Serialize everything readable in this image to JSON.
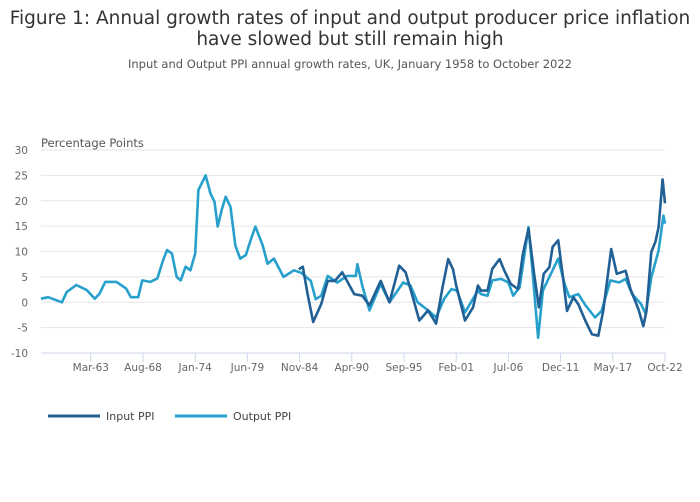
{
  "chart_data": {
    "type": "line",
    "title": "Figure 1: Annual growth rates of input and output producer price inflation",
    "title_line2": "have slowed but still remain high",
    "subtitle": "Input and Output PPI annual growth rates, UK, January 1958 to October 2022",
    "ylabel": "Percentage Points",
    "xlabel": "",
    "ylim": [
      -10,
      30
    ],
    "xlim": [
      "1958-01",
      "2022-10"
    ],
    "yticks": [
      "30",
      "25",
      "20",
      "15",
      "10",
      "5",
      "0",
      "-5",
      "-10"
    ],
    "xticks": [
      {
        "date": "1963-03",
        "label": "Mar-63"
      },
      {
        "date": "1968-08",
        "label": "Aug-68"
      },
      {
        "date": "1974-01",
        "label": "Jan-74"
      },
      {
        "date": "1979-06",
        "label": "Jun-79"
      },
      {
        "date": "1984-11",
        "label": "Nov-84"
      },
      {
        "date": "1990-04",
        "label": "Apr-90"
      },
      {
        "date": "1995-09",
        "label": "Sep-95"
      },
      {
        "date": "2001-02",
        "label": "Feb-01"
      },
      {
        "date": "2006-07",
        "label": "Jul-06"
      },
      {
        "date": "2011-12",
        "label": "Dec-11"
      },
      {
        "date": "2017-05",
        "label": "May-17"
      },
      {
        "date": "2022-10",
        "label": "Oct-22"
      }
    ],
    "grid": true,
    "legend_position": "bottom-left",
    "series": [
      {
        "name": "Input PPI",
        "color": "#206095",
        "points": [
          [
            "1984-10",
            6.5
          ],
          [
            "1985-03",
            7
          ],
          [
            "1985-09",
            1.6
          ],
          [
            "1986-04",
            -3.9
          ],
          [
            "1987-02",
            -0.3
          ],
          [
            "1987-10",
            4.2
          ],
          [
            "1988-07",
            4.2
          ],
          [
            "1989-04",
            5.9
          ],
          [
            "1989-10",
            4.2
          ],
          [
            "1990-07",
            1.6
          ],
          [
            "1991-05",
            1.3
          ],
          [
            "1992-02",
            -0.6
          ],
          [
            "1993-04",
            4.2
          ],
          [
            "1994-03",
            0
          ],
          [
            "1995-03",
            7.2
          ],
          [
            "1995-11",
            5.9
          ],
          [
            "1996-08",
            1
          ],
          [
            "1997-04",
            -3.6
          ],
          [
            "1998-03",
            -1.6
          ],
          [
            "1999-01",
            -4.2
          ],
          [
            "1999-09",
            2.9
          ],
          [
            "2000-04",
            8.5
          ],
          [
            "2000-10",
            6.5
          ],
          [
            "2001-02",
            3.3
          ],
          [
            "2002-01",
            -3.6
          ],
          [
            "2002-11",
            -1
          ],
          [
            "2003-05",
            3.3
          ],
          [
            "2003-09",
            2.3
          ],
          [
            "2004-05",
            2.3
          ],
          [
            "2004-11",
            6.6
          ],
          [
            "2005-08",
            8.5
          ],
          [
            "2006-02",
            6.2
          ],
          [
            "2006-10",
            3.6
          ],
          [
            "2007-07",
            2.6
          ],
          [
            "2008-01",
            9.5
          ],
          [
            "2008-08",
            14.5
          ],
          [
            "2009-03",
            5.6
          ],
          [
            "2009-09",
            -1
          ],
          [
            "2010-03",
            5.6
          ],
          [
            "2010-10",
            6.9
          ],
          [
            "2011-02",
            10.9
          ],
          [
            "2011-09",
            12.2
          ],
          [
            "2012-03",
            4.9
          ],
          [
            "2012-08",
            -1.7
          ],
          [
            "2013-04",
            1
          ],
          [
            "2013-10",
            -0.4
          ],
          [
            "2014-07",
            -3.7
          ],
          [
            "2015-03",
            -6.3
          ],
          [
            "2015-11",
            -6.6
          ],
          [
            "2016-05",
            -1.7
          ],
          [
            "2017-03",
            10.5
          ],
          [
            "2017-10",
            5.6
          ],
          [
            "2018-09",
            6.2
          ],
          [
            "2019-03",
            2.6
          ],
          [
            "2020-01",
            -1.4
          ],
          [
            "2020-07",
            -4.7
          ],
          [
            "2020-11",
            -1.7
          ],
          [
            "2021-05",
            9.9
          ],
          [
            "2021-10",
            11.9
          ],
          [
            "2022-02",
            14.8
          ],
          [
            "2022-07",
            24.2
          ],
          [
            "2022-10",
            19.5
          ]
        ]
      },
      {
        "name": "Output PPI",
        "color": "#27a0cc",
        "points": [
          [
            "1958-01",
            0.7
          ],
          [
            "1958-10",
            1
          ],
          [
            "1960-03",
            0
          ],
          [
            "1960-09",
            2
          ],
          [
            "1961-09",
            3.4
          ],
          [
            "1962-10",
            2.4
          ],
          [
            "1963-08",
            0.7
          ],
          [
            "1964-02",
            1.7
          ],
          [
            "1964-09",
            4
          ],
          [
            "1965-11",
            4
          ],
          [
            "1966-11",
            2.7
          ],
          [
            "1967-05",
            1
          ],
          [
            "1968-02",
            1
          ],
          [
            "1968-07",
            4.3
          ],
          [
            "1969-05",
            4
          ],
          [
            "1970-02",
            4.7
          ],
          [
            "1970-09",
            8.3
          ],
          [
            "1971-02",
            10.3
          ],
          [
            "1971-08",
            9.6
          ],
          [
            "1972-02",
            5
          ],
          [
            "1972-07",
            4.3
          ],
          [
            "1973-01",
            7
          ],
          [
            "1973-07",
            6.3
          ],
          [
            "1974-01",
            9.6
          ],
          [
            "1974-05",
            22.1
          ],
          [
            "1975-02",
            25
          ],
          [
            "1975-08",
            21.4
          ],
          [
            "1976-01",
            19.8
          ],
          [
            "1976-05",
            14.9
          ],
          [
            "1976-10",
            18.2
          ],
          [
            "1977-03",
            20.8
          ],
          [
            "1977-09",
            18.8
          ],
          [
            "1978-03",
            11.2
          ],
          [
            "1978-09",
            8.6
          ],
          [
            "1979-04",
            9.3
          ],
          [
            "1979-10",
            12.2
          ],
          [
            "1980-04",
            14.9
          ],
          [
            "1981-01",
            11.2
          ],
          [
            "1981-07",
            7.6
          ],
          [
            "1982-03",
            8.6
          ],
          [
            "1983-03",
            5
          ],
          [
            "1984-04",
            6.3
          ],
          [
            "1985-01",
            5.8
          ],
          [
            "1986-01",
            4.2
          ],
          [
            "1986-07",
            0.6
          ],
          [
            "1987-02",
            1.3
          ],
          [
            "1987-10",
            5.2
          ],
          [
            "1988-10",
            3.9
          ],
          [
            "1989-10",
            5.2
          ],
          [
            "1990-09",
            5.2
          ],
          [
            "1990-11",
            7.5
          ],
          [
            "1991-05",
            3.3
          ],
          [
            "1992-02",
            -1.6
          ],
          [
            "1993-04",
            3.6
          ],
          [
            "1994-03",
            0
          ],
          [
            "1995-08",
            3.9
          ],
          [
            "1996-05",
            3.3
          ],
          [
            "1997-02",
            0
          ],
          [
            "1998-03",
            -1.6
          ],
          [
            "1999-01",
            -3
          ],
          [
            "1999-11",
            0.7
          ],
          [
            "2000-08",
            2.6
          ],
          [
            "2001-03",
            2.3
          ],
          [
            "2002-01",
            -2
          ],
          [
            "2002-11",
            0.7
          ],
          [
            "2003-05",
            2.3
          ],
          [
            "2003-09",
            1.6
          ],
          [
            "2004-05",
            1.3
          ],
          [
            "2004-11",
            4.3
          ],
          [
            "2005-10",
            4.6
          ],
          [
            "2006-07",
            3.9
          ],
          [
            "2007-01",
            1.3
          ],
          [
            "2007-09",
            2.9
          ],
          [
            "2008-08",
            14.8
          ],
          [
            "2009-01",
            6.2
          ],
          [
            "2009-08",
            -7
          ],
          [
            "2010-02",
            2.3
          ],
          [
            "2010-08",
            4.3
          ],
          [
            "2011-09",
            8.6
          ],
          [
            "2012-05",
            3.6
          ],
          [
            "2012-11",
            1
          ],
          [
            "2013-10",
            1.6
          ],
          [
            "2014-07",
            -0.6
          ],
          [
            "2015-07",
            -3
          ],
          [
            "2016-03",
            -1.7
          ],
          [
            "2017-02",
            4.3
          ],
          [
            "2018-01",
            3.9
          ],
          [
            "2018-09",
            4.6
          ],
          [
            "2019-05",
            1.6
          ],
          [
            "2020-04",
            -0.3
          ],
          [
            "2020-10",
            -2.3
          ],
          [
            "2021-05",
            4.9
          ],
          [
            "2022-02",
            10.2
          ],
          [
            "2022-08",
            17.1
          ],
          [
            "2022-10",
            15.5
          ]
        ]
      }
    ]
  }
}
